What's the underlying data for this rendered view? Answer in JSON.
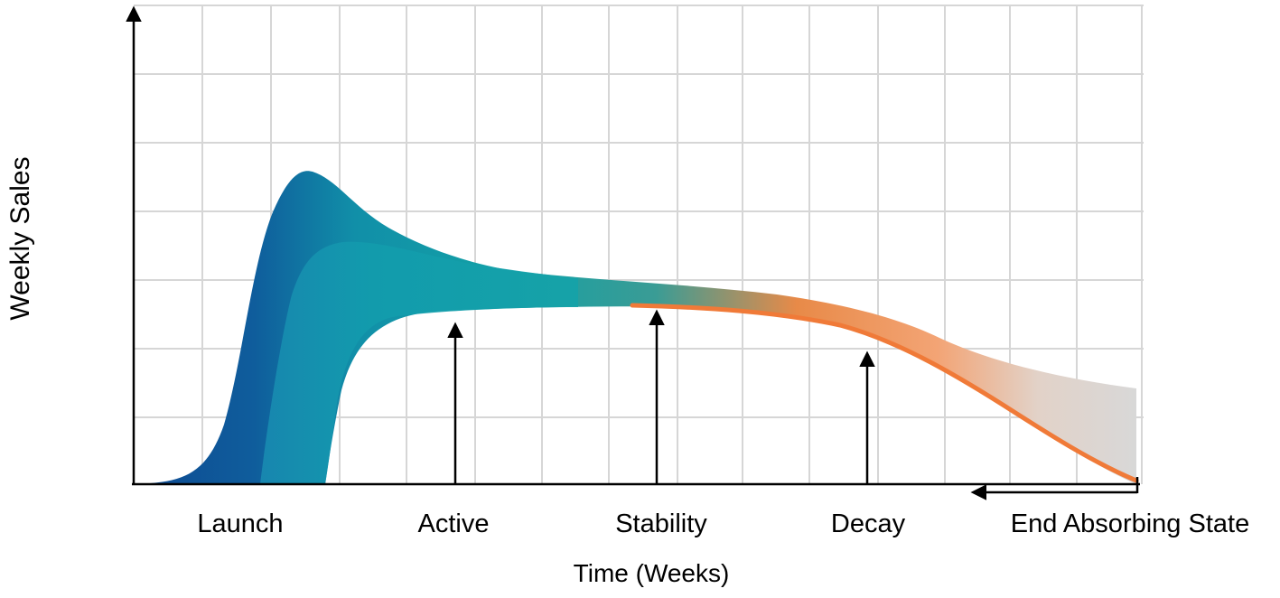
{
  "chart_data": {
    "type": "area",
    "title": "",
    "xlabel": "Time (Weeks)",
    "ylabel": "Weekly Sales",
    "grid": true,
    "stages": [
      {
        "label": "Launch"
      },
      {
        "label": "Active"
      },
      {
        "label": "Stability"
      },
      {
        "label": "Decay"
      },
      {
        "label": "End Absorbing State"
      }
    ]
  },
  "colors": {
    "launch_dark": "#0f4f97",
    "launch_mid": "#1678ae",
    "teal": "#129aa8",
    "active_teal": "#14a3a8",
    "decay_orange": "#f07a38",
    "end_grey": "#d9d9d9",
    "grid": "#d6d6d6",
    "axis": "#000000"
  }
}
